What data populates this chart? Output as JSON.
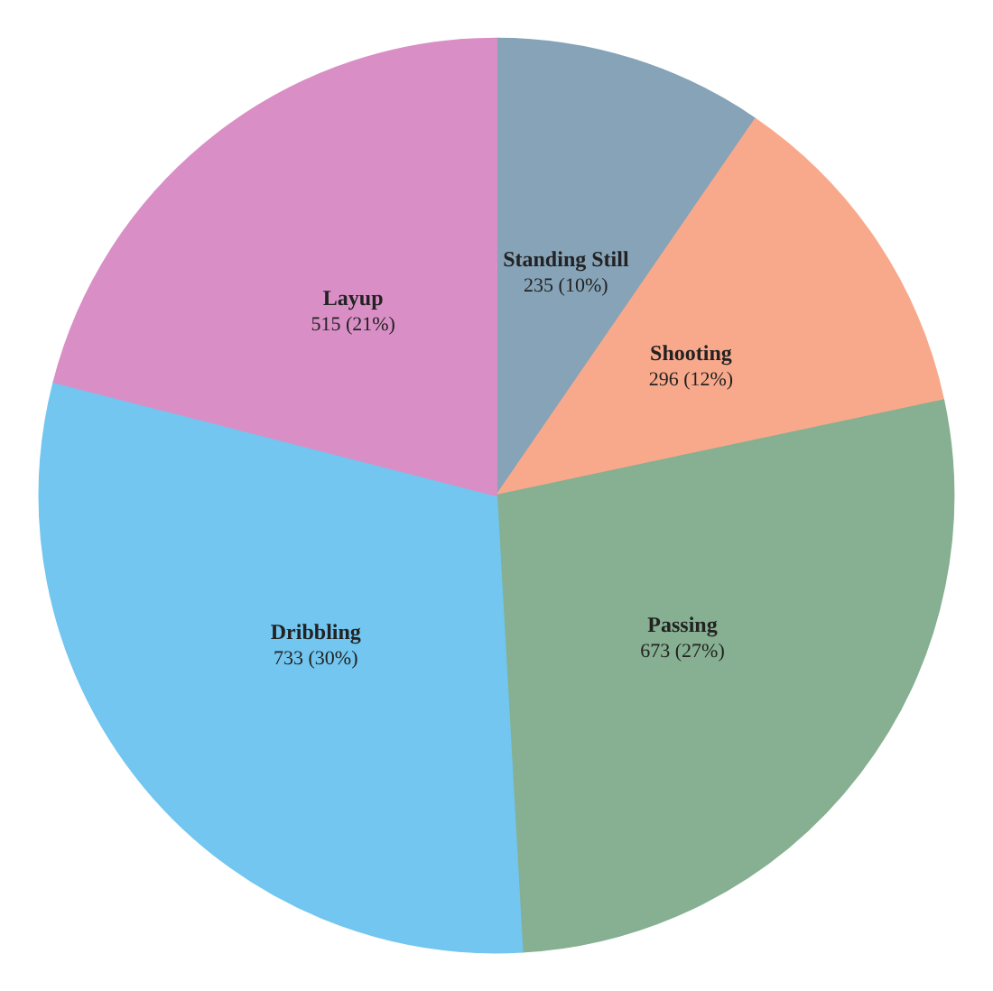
{
  "chart_data": {
    "type": "pie",
    "categories": [
      "Standing Still",
      "Shooting",
      "Passing",
      "Dribbling",
      "Layup"
    ],
    "values": [
      235,
      296,
      673,
      733,
      515
    ],
    "value_labels": [
      "235 (10%)",
      "296 (12%)",
      "673 (27%)",
      "733 (30%)",
      "515 (21%)"
    ],
    "colors": [
      "#86a3b8",
      "#f9a98b",
      "#86b091",
      "#72c6f0",
      "#d98fc6"
    ],
    "legend": false
  }
}
